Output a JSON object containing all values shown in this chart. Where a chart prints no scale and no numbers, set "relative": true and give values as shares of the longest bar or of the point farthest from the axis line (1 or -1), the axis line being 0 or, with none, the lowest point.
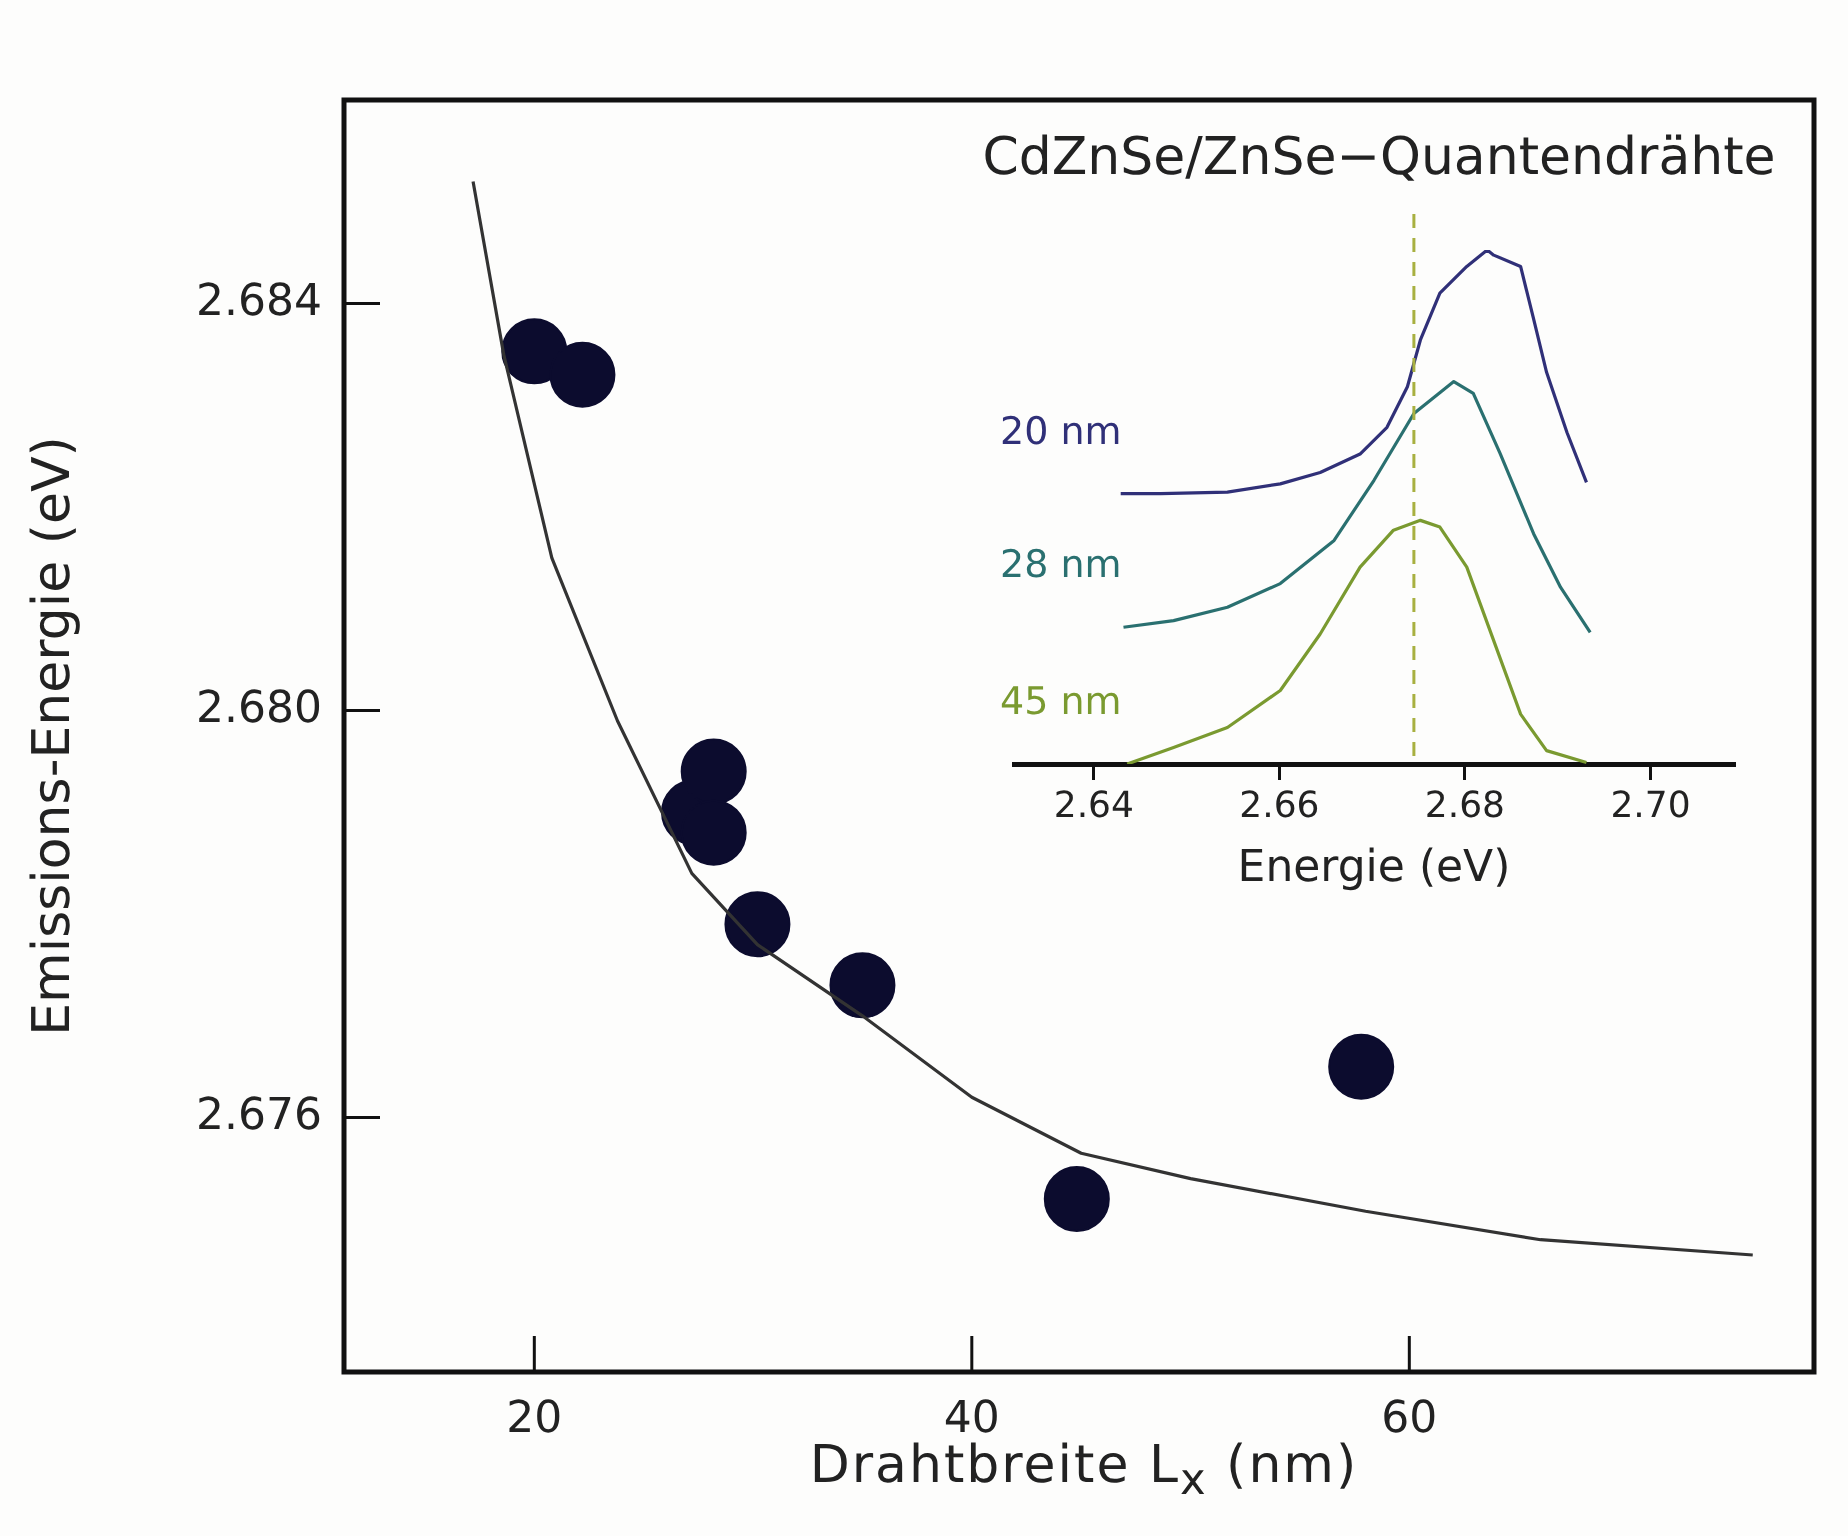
{
  "chart_data": [
    {
      "type": "scatter",
      "title": "CdZnSe/ZnSe−Quantendrähte",
      "xlabel": "Drahtbreite L$_{x}$ (nm)",
      "ylabel": "Emissions-Energie (eV)",
      "xlim": [
        11.3,
        78.5
      ],
      "xticks": [
        20,
        40,
        60
      ],
      "ylim": [
        2.6735,
        2.686
      ],
      "yticks": [
        {
          "value": 2.676,
          "label": "2.676"
        },
        {
          "value": 2.68,
          "label": "2.680"
        },
        {
          "value": 2.684,
          "label": "2.684"
        }
      ],
      "grid": false,
      "legend": false,
      "series": [
        {
          "type": "line",
          "color": "#333333",
          "marker": "none",
          "line_style": "solid",
          "x": [
            17.2,
            18.6,
            20.8,
            23.8,
            27.2,
            30.2,
            35,
            40,
            45,
            50,
            58,
            66,
            75.7
          ],
          "values": [
            2.6852,
            2.6835,
            2.6815,
            2.6799,
            2.6784,
            2.6777,
            2.677,
            2.6762,
            2.67565,
            2.6754,
            2.67508,
            2.6748,
            2.67465
          ]
        },
        {
          "color": "#0c0c2e",
          "marker": "circle",
          "x": [
            20,
            22.2,
            27.3,
            28.2,
            28.2,
            30.2,
            35,
            44.8,
            57.8
          ],
          "values": [
            2.68353,
            2.6833,
            2.679,
            2.6794,
            2.6788,
            2.6779,
            2.6773,
            2.6752,
            2.6765
          ]
        }
      ]
    },
    {
      "type": "line",
      "xlabel": "Energie (eV)",
      "relative": true,
      "xlim": [
        2.6314,
        2.709
      ],
      "xticks": [
        2.64,
        2.66,
        2.68,
        {
          "value": 2.7,
          "label": "2.70"
        }
      ],
      "grid": false,
      "legend": false,
      "tick_labels": "x",
      "ref_lines": [
        {
          "axis": "x",
          "value": 2.6745,
          "color": "#a8b040",
          "line_style": "dashed"
        }
      ],
      "series": [
        {
          "name": "20 nm",
          "color": "#303078",
          "x": [
            2.6429,
            2.6472,
            2.6544,
            2.6601,
            2.6644,
            2.6687,
            2.6716,
            2.6738,
            2.6752,
            2.6773,
            2.6802,
            2.6824,
            2.6831,
            2.686,
            2.6874,
            2.6888,
            2.691,
            2.6931
          ],
          "values": [
            0.526,
            0.526,
            0.529,
            0.545,
            0.567,
            0.603,
            0.655,
            0.734,
            0.825,
            0.916,
            0.968,
            1,
            0.99,
            0.968,
            0.866,
            0.762,
            0.645,
            0.548
          ]
        },
        {
          "name": "28 nm",
          "color": "#2a7070",
          "x": [
            2.6432,
            2.6486,
            2.6544,
            2.6601,
            2.6659,
            2.6702,
            2.6745,
            2.6788,
            2.6809,
            2.6838,
            2.6874,
            2.6903,
            2.6935
          ],
          "values": [
            0.266,
            0.279,
            0.305,
            0.351,
            0.435,
            0.552,
            0.682,
            0.744,
            0.721,
            0.604,
            0.448,
            0.344,
            0.256
          ]
        },
        {
          "name": "45 nm",
          "color": "#7a9a30",
          "x": [
            2.6436,
            2.6486,
            2.6544,
            2.6601,
            2.6644,
            2.6687,
            2.6723,
            2.6752,
            2.6773,
            2.6802,
            2.6831,
            2.686,
            2.6888,
            2.6931
          ],
          "values": [
            0,
            0.032,
            0.071,
            0.143,
            0.253,
            0.383,
            0.455,
            0.474,
            0.461,
            0.383,
            0.24,
            0.097,
            0.026,
            0.003
          ]
        }
      ]
    }
  ]
}
